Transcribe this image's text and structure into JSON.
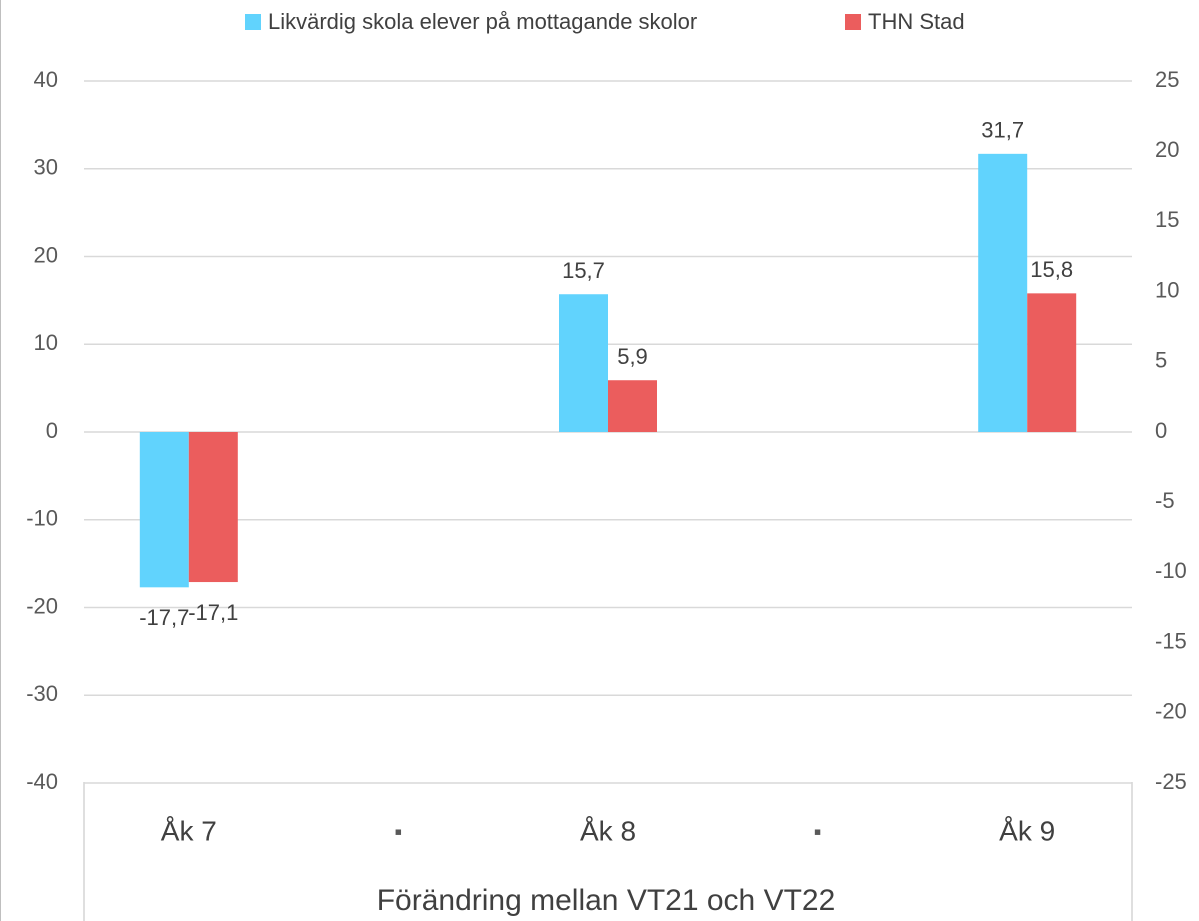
{
  "chart_data": {
    "type": "bar",
    "x_label": "Förändring mellan VT21 och VT22",
    "categories": [
      "Åk 7",
      "▪",
      "Åk 8",
      "▪",
      "Åk 9"
    ],
    "series": [
      {
        "name": "Likvärdig skola elever på mottagande skolor",
        "color": "#61d3fd",
        "values": [
          -17.7,
          null,
          15.7,
          null,
          31.7
        ],
        "value_labels": [
          "-17,7",
          null,
          "15,7",
          null,
          "31,7"
        ]
      },
      {
        "name": "THN Stad",
        "color": "#eb5d5d",
        "values": [
          -17.1,
          null,
          5.9,
          null,
          15.8
        ],
        "value_labels": [
          "-17,1",
          null,
          "5,9",
          null,
          "15,8"
        ]
      }
    ],
    "ylim": [
      -40,
      40
    ],
    "yticks": [
      -40,
      -30,
      -20,
      -10,
      0,
      10,
      20,
      30,
      40
    ],
    "y2lim": [
      -25,
      25
    ],
    "y2ticks": [
      -25,
      -20,
      -15,
      -10,
      -5,
      0,
      5,
      10,
      15,
      20,
      25
    ],
    "grid": true,
    "legend": "top"
  }
}
